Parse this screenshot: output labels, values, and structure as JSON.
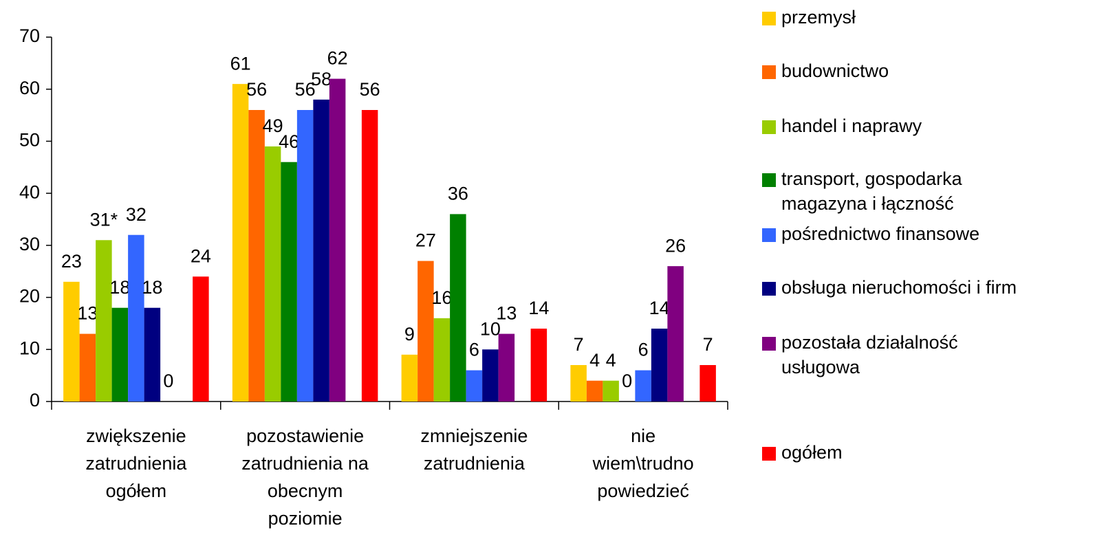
{
  "chart_data": {
    "type": "bar",
    "categories": [
      "zwiększenie\nzatrudnienia\nogółem",
      "pozostawienie\nzatrudnienia na\nobecnym\npoziomie",
      "zmniejszenie\nzatrudnienia",
      "nie\nwiem\\trudno\npowiedzieć"
    ],
    "series": [
      {
        "name": "przemysł",
        "color": "#FFCC00",
        "values": [
          23,
          61,
          9,
          7
        ]
      },
      {
        "name": "budownictwo",
        "color": "#FF6600",
        "values": [
          13,
          56,
          27,
          4
        ]
      },
      {
        "name": "handel i naprawy",
        "color": "#99CC00",
        "values": [
          31,
          49,
          16,
          4
        ],
        "value_labels": [
          "31*",
          "49",
          "16",
          "4"
        ]
      },
      {
        "name": "transport, gospodarka\nmagazyna i łączność",
        "color": "#008000",
        "values": [
          18,
          46,
          36,
          0
        ]
      },
      {
        "name": "pośrednictwo finansowe",
        "color": "#3366FF",
        "values": [
          32,
          56,
          6,
          6
        ]
      },
      {
        "name": "obsługa nieruchomości i firm",
        "color": "#000080",
        "values": [
          18,
          58,
          10,
          14
        ]
      },
      {
        "name": "pozostała działalność\nusługowa",
        "color": "#800080",
        "values": [
          0,
          62,
          13,
          26
        ]
      },
      {
        "name": "ogółem",
        "color": "#FF0000",
        "values": [
          24,
          56,
          14,
          7
        ]
      }
    ],
    "ylim": [
      0,
      70
    ],
    "yticks": [
      0,
      10,
      20,
      30,
      40,
      50,
      60,
      70
    ],
    "grid": false,
    "legend": "right"
  }
}
